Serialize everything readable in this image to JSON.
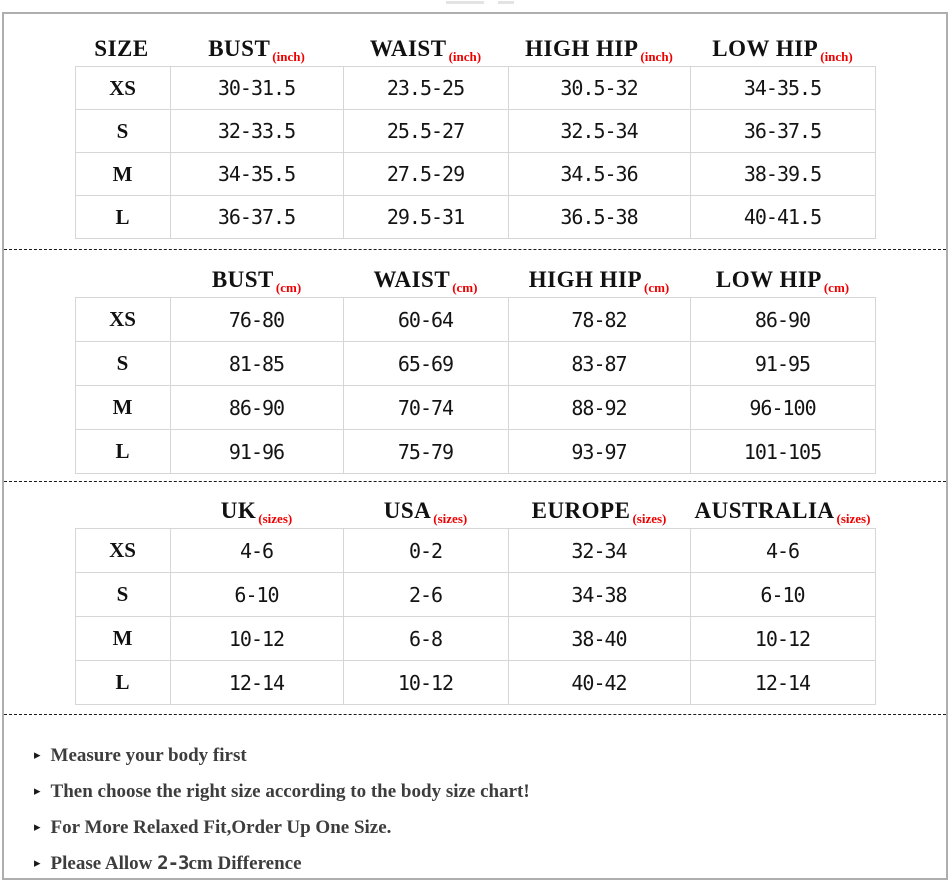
{
  "colors": {
    "accent_red": "#ee0000",
    "grid_line": "#d6d6d6",
    "frame_border": "#aeaeae",
    "text_black": "#111111",
    "note_gray": "#3d3d3d",
    "dashed_separator": "#1a1a1a"
  },
  "tables": [
    {
      "name": "body-measurements-inch",
      "headers": [
        {
          "label": "SIZE",
          "sub": ""
        },
        {
          "label": "BUST",
          "sub": "(inch)"
        },
        {
          "label": "WAIST",
          "sub": "(inch)"
        },
        {
          "label": "HIGH HIP",
          "sub": "(inch)"
        },
        {
          "label": "LOW HIP",
          "sub": "(inch)"
        }
      ],
      "rows": [
        {
          "size": "XS",
          "values": [
            "30-31.5",
            "23.5-25",
            "30.5-32",
            "34-35.5"
          ]
        },
        {
          "size": "S",
          "values": [
            "32-33.5",
            "25.5-27",
            "32.5-34",
            "36-37.5"
          ]
        },
        {
          "size": "M",
          "values": [
            "34-35.5",
            "27.5-29",
            "34.5-36",
            "38-39.5"
          ]
        },
        {
          "size": "L",
          "values": [
            "36-37.5",
            "29.5-31",
            "36.5-38",
            "40-41.5"
          ]
        }
      ]
    },
    {
      "name": "body-measurements-cm",
      "headers": [
        {
          "label": "",
          "sub": ""
        },
        {
          "label": "BUST",
          "sub": "(cm)"
        },
        {
          "label": "WAIST",
          "sub": "(cm)"
        },
        {
          "label": "HIGH HIP",
          "sub": "(cm)"
        },
        {
          "label": "LOW HIP",
          "sub": "(cm)"
        }
      ],
      "rows": [
        {
          "size": "XS",
          "values": [
            "76-80",
            "60-64",
            "78-82",
            "86-90"
          ]
        },
        {
          "size": "S",
          "values": [
            "81-85",
            "65-69",
            "83-87",
            "91-95"
          ]
        },
        {
          "size": "M",
          "values": [
            "86-90",
            "70-74",
            "88-92",
            "96-100"
          ]
        },
        {
          "size": "L",
          "values": [
            "91-96",
            "75-79",
            "93-97",
            "101-105"
          ]
        }
      ]
    },
    {
      "name": "international-sizes",
      "headers": [
        {
          "label": "",
          "sub": ""
        },
        {
          "label": "UK",
          "sub": "(sizes)"
        },
        {
          "label": "USA",
          "sub": "(sizes)"
        },
        {
          "label": "EUROPE",
          "sub": "(sizes)"
        },
        {
          "label": "AUSTRALIA",
          "sub": "(sizes)"
        }
      ],
      "rows": [
        {
          "size": "XS",
          "values": [
            "4-6",
            "0-2",
            "32-34",
            "4-6"
          ]
        },
        {
          "size": "S",
          "values": [
            "6-10",
            "2-6",
            "34-38",
            "6-10"
          ]
        },
        {
          "size": "M",
          "values": [
            "10-12",
            "6-8",
            "38-40",
            "10-12"
          ]
        },
        {
          "size": "L",
          "values": [
            "12-14",
            "10-12",
            "40-42",
            "12-14"
          ]
        }
      ]
    }
  ],
  "notes": [
    {
      "bullet": "▸",
      "pre": "Measure your body first",
      "num": "",
      "post": ""
    },
    {
      "bullet": "▸",
      "pre": "Then choose the right size according to the body size chart!",
      "num": "",
      "post": ""
    },
    {
      "bullet": "▸",
      "pre": "For More Relaxed Fit,Order Up One Size.",
      "num": "",
      "post": ""
    },
    {
      "bullet": "▸",
      "pre": "Please Allow ",
      "num": "2-3",
      "post": "cm Difference"
    }
  ]
}
